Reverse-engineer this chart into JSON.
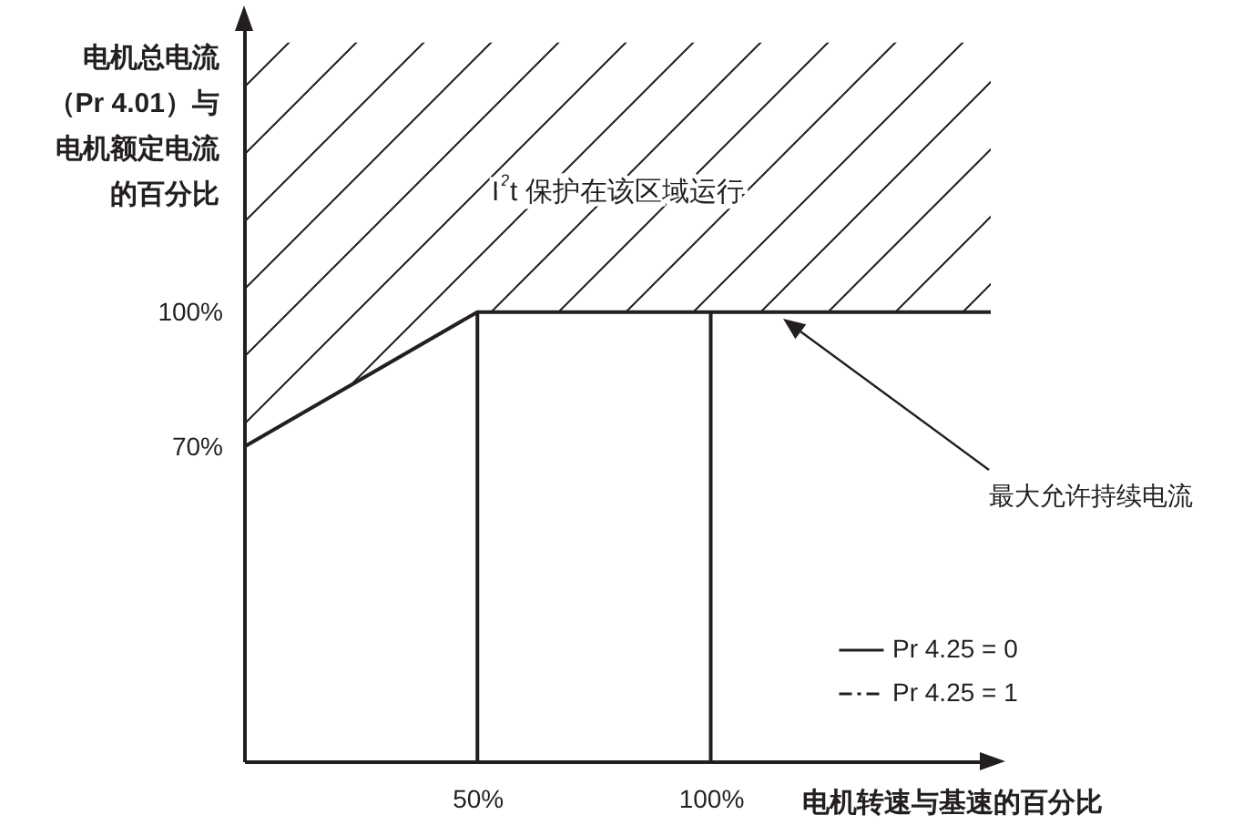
{
  "chart_data": {
    "type": "line",
    "xlabel": "电机转速与基速的百分比",
    "ylabel": "电机总电流（Pr 4.01）与电机额定电流的百分比",
    "xlim": [
      0,
      160
    ],
    "ylim": [
      0,
      165
    ],
    "xticks": [
      {
        "value": 50,
        "label": "50%"
      },
      {
        "value": 100,
        "label": "100%"
      }
    ],
    "yticks": [
      {
        "value": 70,
        "label": "70%"
      },
      {
        "value": 100,
        "label": "100%"
      }
    ],
    "grid": false,
    "legend": "bottom right",
    "marker": "none",
    "annotations": [
      "I$^{2}$t 保护在该区域运行",
      "最大允许持续电流"
    ],
    "series": [
      {
        "name": "Pr 4.25 = 0",
        "color": "#231f20",
        "line_style": "solid",
        "x": [
          0,
          50,
          160
        ],
        "values": [
          70,
          100,
          100
        ],
        "lower": [
          70,
          100,
          100
        ],
        "upper": [
          160,
          160,
          160
        ]
      },
      {
        "name": "Pr 4.25 = 1",
        "color": "#231f20",
        "line_style": "dashdot"
      },
      {
        "color": "#231f20",
        "line_style": "solid",
        "x": [
          50,
          50
        ],
        "values": [
          0,
          100
        ]
      },
      {
        "color": "#231f20",
        "line_style": "solid",
        "x": [
          100,
          100
        ],
        "values": [
          0,
          100
        ]
      }
    ]
  }
}
